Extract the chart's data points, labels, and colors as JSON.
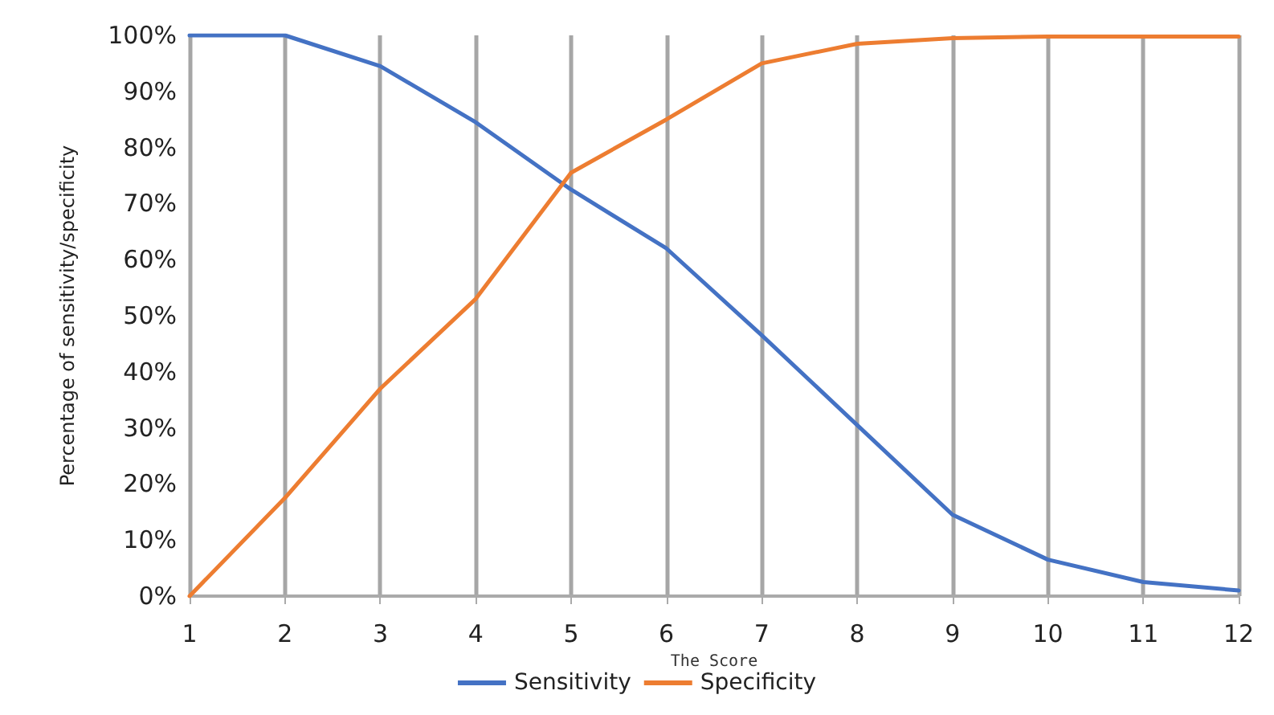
{
  "chart_data": {
    "type": "line",
    "xlabel": "The Score",
    "ylabel": "Percentage of sensitivity/specificity",
    "x": [
      1,
      2,
      3,
      4,
      5,
      6,
      7,
      8,
      9,
      10,
      11,
      12
    ],
    "xlim": [
      1,
      12
    ],
    "xticks": [
      1,
      2,
      3,
      4,
      5,
      6,
      7,
      8,
      9,
      10,
      11,
      12
    ],
    "series": [
      {
        "name": "Sensitivity",
        "color": "#4472c4",
        "values": [
          100,
          100,
          94.5,
          84.5,
          72.5,
          62,
          46.5,
          30.5,
          14.5,
          6.5,
          2.5,
          1
        ]
      },
      {
        "name": "Specificity",
        "color": "#ed7d31",
        "values": [
          0,
          17.5,
          37,
          53,
          75.5,
          85,
          95,
          98.5,
          99.5,
          99.8,
          99.8,
          99.8
        ]
      }
    ],
    "ylim": [
      0,
      100
    ],
    "yticks": [
      {
        "value": 0,
        "label": "0%"
      },
      {
        "value": 10,
        "label": "10%"
      },
      {
        "value": 20,
        "label": "20%"
      },
      {
        "value": 30,
        "label": "30%"
      },
      {
        "value": 40,
        "label": "40%"
      },
      {
        "value": 50,
        "label": "50%"
      },
      {
        "value": 60,
        "label": "60%"
      },
      {
        "value": 70,
        "label": "70%"
      },
      {
        "value": 80,
        "label": "80%"
      },
      {
        "value": 90,
        "label": "90%"
      },
      {
        "value": 100,
        "label": "100%"
      }
    ],
    "grid": "x",
    "legend": "bottom",
    "marker": "none",
    "line_style": "solid"
  }
}
